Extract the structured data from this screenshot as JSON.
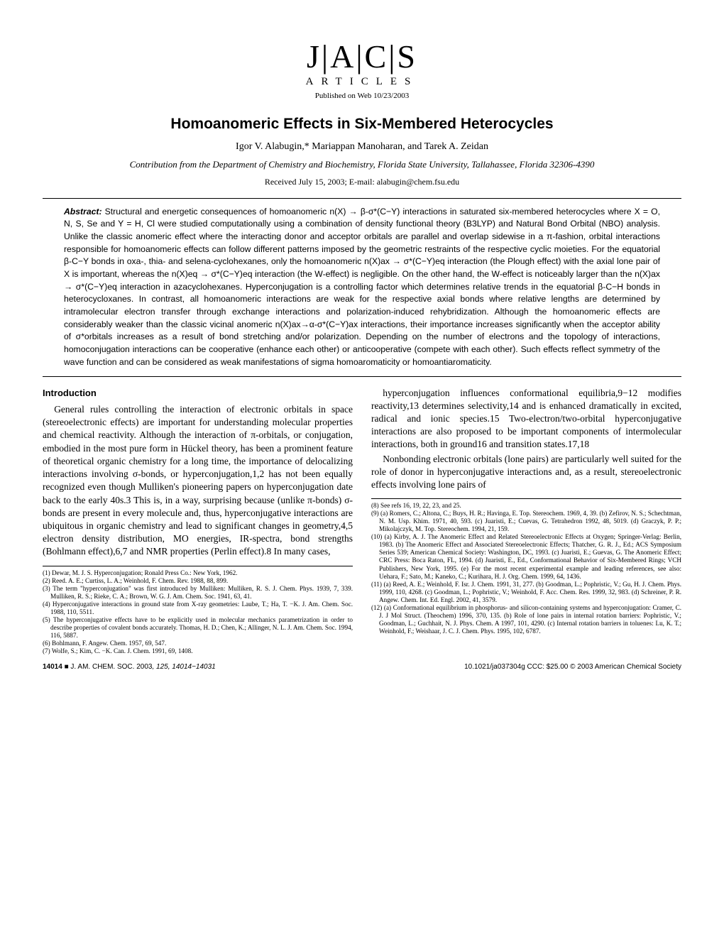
{
  "header": {
    "logo": "J|A|C|S",
    "logo_sub": "ARTICLES",
    "pubdate": "Published on Web 10/23/2003"
  },
  "title": "Homoanomeric Effects in Six-Membered Heterocycles",
  "authors": "Igor V. Alabugin,* Mariappan Manoharan, and Tarek A. Zeidan",
  "affil": "Contribution from the Department of Chemistry and Biochemistry, Florida State University, Tallahassee, Florida 32306-4390",
  "received": "Received July 15, 2003; E-mail: alabugin@chem.fsu.edu",
  "abstract_lead": "Abstract:",
  "abstract": " Structural and energetic consequences of homoanomeric n(X) → β-σ*(C−Y) interactions in saturated six-membered heterocycles where X = O, N, S, Se and Y = H, Cl were studied computationally using a combination of density functional theory (B3LYP) and Natural Bond Orbital (NBO) analysis. Unlike the classic anomeric effect where the interacting donor and acceptor orbitals are parallel and overlap sidewise in a π-fashion, orbital interactions responsible for homoanomeric effects can follow different patterns imposed by the geometric restraints of the respective cyclic moieties. For the equatorial β-C−Y bonds in oxa-, thia- and selena-cyclohexanes, only the homoanomeric n(X)ax → σ*(C−Y)eq interaction (the Plough effect) with the axial lone pair of X is important, whereas the n(X)eq → σ*(C−Y)eq interaction (the W-effect) is negligible. On the other hand, the W-effect is noticeably larger than the n(X)ax → σ*(C−Y)eq interaction in azacyclohexanes. Hyperconjugation is a controlling factor which determines relative trends in the equatorial β-C−H bonds in heterocycloxanes. In contrast, all homoanomeric interactions are weak for the respective axial bonds where relative lengths are determined by intramolecular electron transfer through exchange interactions and polarization-induced rehybridization. Although the homoanomeric effects are considerably weaker than the classic vicinal anomeric n(X)ax→α-σ*(C−Y)ax interactions, their importance increases significantly when the acceptor ability of σ*orbitals increases as a result of bond stretching and/or polarization. Depending on the number of electrons and the topology of interactions, homoconjugation interactions can be cooperative (enhance each other) or anticooperative (compete with each other). Such effects reflect symmetry of the wave function and can be considered as weak manifestations of sigma homoaromaticity or homoantiaromaticity.",
  "intro_head": "Introduction",
  "left_para": "General rules controlling the interaction of electronic orbitals in space (stereoelectronic effects) are important for understanding molecular properties and chemical reactivity. Although the interaction of π-orbitals, or conjugation, embodied in the most pure form in Hückel theory, has been a prominent feature of theoretical organic chemistry for a long time, the importance of delocalizing interactions involving σ-bonds, or hyperconjugation,1,2 has not been equally recognized even though Mulliken's pioneering papers on hyperconjugation date back to the early 40s.3 This is, in a way, surprising because (unlike π-bonds) σ-bonds are present in every molecule and, thus, hyperconjugative interactions are ubiquitous in organic chemistry and lead to significant changes in geometry,4,5 electron density distribution, MO energies, IR-spectra, bond strengths (Bohlmann effect),6,7 and NMR properties (Perlin effect).8 In many cases,",
  "right_para1": "hyperconjugation influences conformational equilibria,9−12 modifies reactivity,13 determines selectivity,14 and is enhanced dramatically in excited, radical and ionic species.15 Two-electron/two-orbital hyperconjugative interactions are also proposed to be important components of intermolecular interactions, both in ground16 and transition states.17,18",
  "right_para2": "Nonbonding electronic orbitals (lone pairs) are particularly well suited for the role of donor in hyperconjugative interactions and, as a result, stereoelectronic effects involving lone pairs of",
  "left_refs": [
    "(1) Dewar, M. J. S. Hyperconjugation; Ronald Press Co.: New York, 1962.",
    "(2) Reed. A. E.; Curtiss, L. A.; Weinhold, F. Chem. Rev. 1988, 88, 899.",
    "(3) The term \"hyperconjugation\" was first introduced by Mulliken: Mulliken, R. S. J. Chem. Phys. 1939, 7, 339. Mulliken, R. S.; Rieke, C. A.; Brown, W. G. J. Am. Chem. Soc. 1941, 63, 41.",
    "(4) Hyperconjugative interactions in ground state from X-ray geometries: Laube, T.; Ha, T. −K. J. Am. Chem. Soc. 1988, 110, 5511.",
    "(5) The hyperconjugative effects have to be explicitly used in molecular mechanics parametrization in order to describe properties of covalent bonds accurately. Thomas, H. D.; Chen, K.; Allinger, N. L. J. Am. Chem. Soc. 1994, 116, 5887.",
    "(6) Bohlmann, F. Angew. Chem. 1957, 69, 547.",
    "(7) Wolfe, S.; Kim, C. −K. Can. J. Chem. 1991, 69, 1408."
  ],
  "right_refs": [
    "(8) See refs 16, 19, 22, 23, and 25.",
    "(9) (a) Romers, C.; Altona, C.; Buys, H. R.; Havinga, E. Top. Stereochem. 1969, 4, 39. (b) Zefirov, N. S.; Schechtman, N. M. Usp. Khim. 1971, 40, 593. (c) Juaristi, E.; Cuevas, G. Tetrahedron 1992, 48, 5019. (d) Graczyk, P. P.; Mikolajczyk, M. Top. Stereochem. 1994, 21, 159.",
    "(10) (a) Kirby, A. J. The Anomeric Effect and Related Stereoelectronic Effects at Oxygen; Springer-Verlag: Berlin, 1983. (b) The Anomeric Effect and Associated Stereoelectronic Effects; Thatcher, G. R. J., Ed.; ACS Symposium Series 539; American Chemical Society: Washington, DC, 1993. (c) Juaristi, E.; Guevas, G. The Anomeric Effect; CRC Press: Boca Raton, FL, 1994. (d) Juaristi, E., Ed., Conformational Behavior of Six-Membered Rings; VCH Publishers, New York, 1995. (e) For the most recent experimental example and leading references, see also: Uehara, F.; Sato, M.; Kaneko, C.; Kurihara, H. J. Org. Chem. 1999, 64, 1436.",
    "(11) (a) Reed, A. E.; Weinhold, F. Isr. J. Chem. 1991, 31, 277. (b) Goodman, L.; Pophristic, V.; Gu, H. J. Chem. Phys. 1999, 110, 4268. (c) Goodman, L.; Pophristic, V.; Weinhold, F. Acc. Chem. Res. 1999, 32, 983. (d) Schreiner, P. R. Angew. Chem. Int. Ed. Engl. 2002, 41, 3579.",
    "(12) (a) Conformational equilibrium in phosphorus- and silicon-containing systems and hyperconjugation: Cramer, C. J. J Mol Struct. (Theochem) 1996, 370, 135. (b) Role of lone pairs in internal rotation barriers: Pophristic, V.; Goodman, L.; Guchhait, N. J. Phys. Chem. A 1997, 101, 4290. (c) Internal rotation barriers in toluenes: Lu, K. T.; Weinhold, F.; Weishaar, J. C. J. Chem. Phys. 1995, 102, 6787."
  ],
  "footer_left_a": "14014",
  "footer_left_b": "J. AM. CHEM. SOC. 2003",
  "footer_left_c": ", 125, 14014−14031",
  "footer_right": "10.1021/ja037304g CCC: $25.00 © 2003 American Chemical Society"
}
